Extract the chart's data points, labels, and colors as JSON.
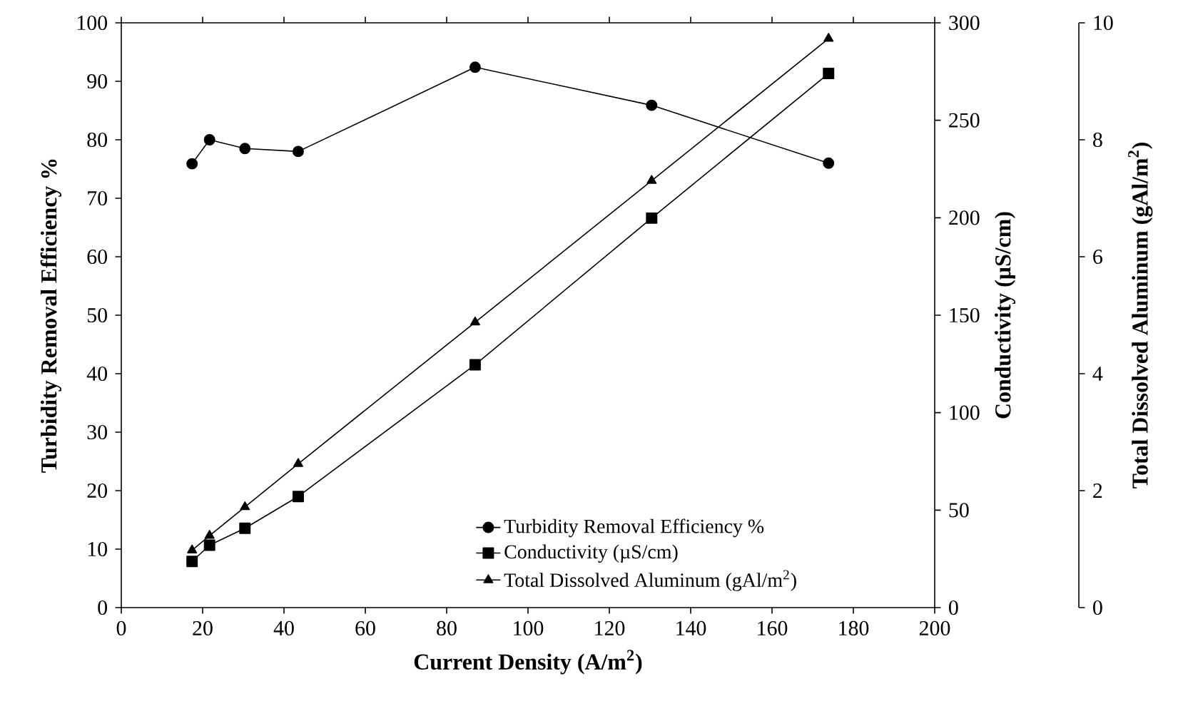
{
  "chart_data": {
    "type": "line",
    "xlabel": "Current Density (A/m$^{2}$)",
    "ylabel": "Turbidity Removal Efficiency %",
    "y2label": "Conductivity (µS/cm)",
    "y3label": "Total Dissolved Aluminum (gAl/m$^{2}$)",
    "x": [
      17.4,
      21.7,
      30.4,
      43.5,
      87,
      130.4,
      173.9
    ],
    "series": [
      {
        "name": "Turbidity Removal Efficiency %",
        "color": "#000000",
        "marker": "circle",
        "values": [
          75.9,
          80,
          78.5,
          78,
          92.4,
          85.9,
          76
        ]
      },
      {
        "name": "Conductivity (µS/cm)",
        "color": "#000000",
        "marker": "square",
        "axis": "y2",
        "values": [
          23.7,
          32,
          40.7,
          57,
          124.6,
          199.8,
          274
        ]
      },
      {
        "name": "Total Dissolved Aluminum (gAl/m$^{2}$)",
        "color": "#000000",
        "marker": "triangle",
        "axis": "y3",
        "values": [
          0.98,
          1.23,
          1.72,
          2.46,
          4.88,
          7.3,
          9.73
        ]
      }
    ],
    "xlim": [
      0,
      200
    ],
    "xticks": [
      0,
      20,
      40,
      60,
      80,
      100,
      120,
      140,
      160,
      180,
      200
    ],
    "ylim": [
      0,
      100
    ],
    "yticks": [
      0,
      10,
      20,
      30,
      40,
      50,
      60,
      70,
      80,
      90,
      100
    ],
    "y2lim": [
      0,
      300
    ],
    "y2ticks": [
      0,
      50,
      100,
      150,
      200,
      250,
      300
    ],
    "y3lim": [
      0,
      10
    ],
    "y3ticks": [
      0,
      2,
      4,
      6,
      8,
      10
    ],
    "legend": "bottom right",
    "line_style": "solid",
    "grid": false
  }
}
